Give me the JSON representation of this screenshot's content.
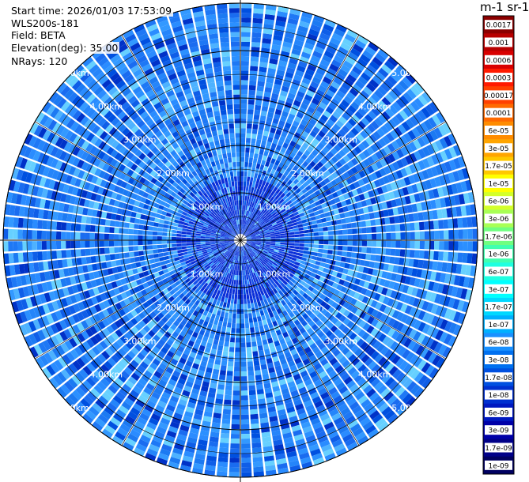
{
  "info": {
    "start_time": "Start time: 2026/01/03 17:53:09",
    "instrument": "WLS200s-181",
    "field": "Field: BETA",
    "elevation": "Elevation(deg): 35.00",
    "nrays": "NRays: 120"
  },
  "colorbar": {
    "unit_label": "m-1 sr-1",
    "ticks": [
      "0.0017",
      "0.001",
      "0.0006",
      "0.0003",
      "0.00017",
      "0.0001",
      "6e-05",
      "3e-05",
      "1.7e-05",
      "1e-05",
      "6e-06",
      "3e-06",
      "1.7e-06",
      "1e-06",
      "6e-07",
      "3e-07",
      "1.7e-07",
      "1e-07",
      "6e-08",
      "3e-08",
      "1.7e-08",
      "1e-08",
      "6e-09",
      "3e-09",
      "1.7e-09",
      "1e-09"
    ],
    "colors": [
      "#8b0000",
      "#b80000",
      "#d90000",
      "#ff1a00",
      "#ff4000",
      "#ff6a00",
      "#ff8c00",
      "#ffa500",
      "#ffc800",
      "#ffff00",
      "#d4ff2a",
      "#a8ff55",
      "#6fff80",
      "#40ffb0",
      "#20ffe0",
      "#00ffff",
      "#00d8ff",
      "#00b0ff",
      "#1a90ff",
      "#0070f0",
      "#0050e0",
      "#0030d0",
      "#0018c0",
      "#0000a8",
      "#000088",
      "#000060"
    ]
  },
  "chart_data": {
    "type": "heatmap",
    "projection": "polar (PPI scan)",
    "n_rays": 120,
    "range_rings_km": [
      1.0,
      2.0,
      3.0,
      4.0,
      5.0
    ],
    "range_labels": [
      "1.00km",
      "2.00km",
      "3.00km",
      "4.00km",
      "5.00km"
    ],
    "max_range_km": 5.0,
    "dominant_value_range": [
      3e-08,
      1.7e-07
    ],
    "grid": true
  }
}
